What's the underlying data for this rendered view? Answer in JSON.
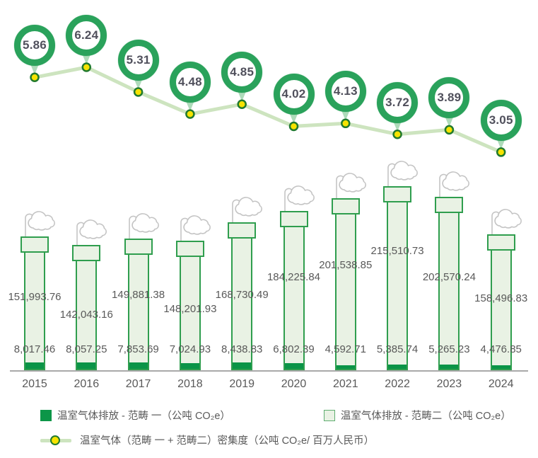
{
  "chart_data": {
    "type": "bar",
    "subtype": "stacked-chimney-bars-with-intensity-line",
    "title": "",
    "categories": [
      "2015",
      "2016",
      "2017",
      "2018",
      "2019",
      "2020",
      "2021",
      "2022",
      "2023",
      "2024"
    ],
    "series": [
      {
        "name": "温室气体排放 - 范畴 一（公吨 CO₂e）",
        "color": "#0a9447",
        "values": [
          8017.46,
          8057.25,
          7853.69,
          7024.93,
          8438.83,
          6802.39,
          4592.71,
          5385.74,
          5265.23,
          4476.85
        ],
        "labels": [
          "8,017.46",
          "8,057.25",
          "7,853.69",
          "7,024.93",
          "8,438.83",
          "6,802.39",
          "4,592.71",
          "5,385.74",
          "5,265.23",
          "4,476.85"
        ]
      },
      {
        "name": "温室气体排放 - 范畴二（公吨 CO₂e）",
        "color": "#e9f2e4",
        "border_color": "#2f9e4e",
        "values": [
          151993.76,
          142043.16,
          149881.38,
          148201.93,
          168730.49,
          184225.84,
          201538.85,
          215510.73,
          202570.24,
          158496.83
        ],
        "labels": [
          "151,993.76",
          "142,043.16",
          "149,881.38",
          "148,201.93",
          "168,730.49",
          "184,225.84",
          "201,538.85",
          "215,510.73",
          "202,570.24",
          "158,496.83"
        ]
      }
    ],
    "line": {
      "name": "温室气体（范畴 一 + 范畴二）密集度（公吨 CO₂e/ 百万人民币）",
      "values": [
        5.86,
        6.24,
        5.31,
        4.48,
        4.85,
        4.02,
        4.13,
        3.72,
        3.89,
        3.05
      ],
      "labels": [
        "5.86",
        "6.24",
        "5.31",
        "4.48",
        "4.85",
        "4.02",
        "4.13",
        "3.72",
        "3.89",
        "3.05"
      ],
      "line_color": "#cde4bf",
      "marker_fill": "#f6e300",
      "marker_border": "#217a2e",
      "badge_ring_color": "#2aa25b",
      "badge_tail_color": "#aedbba"
    },
    "axis": {
      "baseline_color": "#a9a9a9",
      "label_color": "#595959"
    },
    "grid": false,
    "legend_position": "bottom",
    "decorations": {
      "smoke_cloud_color": "#c4c4c4"
    }
  }
}
